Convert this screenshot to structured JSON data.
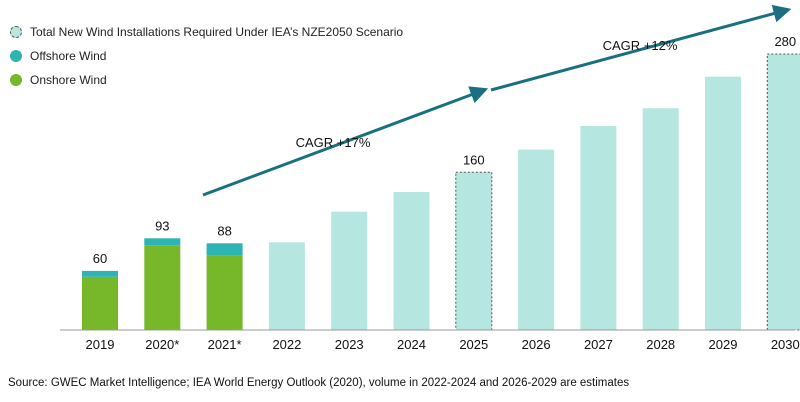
{
  "colors": {
    "onshore": "#76b82a",
    "offshore": "#2db4b4",
    "required": "#b5e6e0",
    "arrow": "#1a6f80",
    "axis": "#999999"
  },
  "legend": [
    {
      "label": "Total New Wind Installations Required Under IEA’s NZE2050 Scenario",
      "key": "required",
      "dashed": true
    },
    {
      "label": "Offshore Wind",
      "key": "offshore",
      "dashed": false
    },
    {
      "label": "Onshore Wind",
      "key": "onshore",
      "dashed": false
    }
  ],
  "source": "Source: GWEC Market Intelligence; IEA World Energy Outlook (2020), volume in 2022-2024 and 2026-2029 are estimates",
  "chart_data": {
    "type": "bar",
    "title": "",
    "xlabel": "",
    "ylabel": "",
    "ylim": [
      0,
      300
    ],
    "categories": [
      "2019",
      "2020*",
      "2021*",
      "2022",
      "2023",
      "2024",
      "2025",
      "2026",
      "2027",
      "2028",
      "2029",
      "2030"
    ],
    "series": [
      {
        "name": "Onshore Wind",
        "key": "onshore",
        "values": [
          54,
          86,
          76,
          null,
          null,
          null,
          null,
          null,
          null,
          null,
          null,
          null
        ]
      },
      {
        "name": "Offshore Wind",
        "key": "offshore",
        "values": [
          6,
          7,
          12,
          null,
          null,
          null,
          null,
          null,
          null,
          null,
          null,
          null
        ]
      },
      {
        "name": "Total New Wind Installations Required Under IEA’s NZE2050 Scenario",
        "key": "required",
        "values": [
          null,
          null,
          null,
          89,
          120,
          140,
          160,
          183,
          207,
          225,
          257,
          280
        ]
      }
    ],
    "highlighted": [
      "2025",
      "2030"
    ],
    "data_labels": [
      {
        "category": "2019",
        "text": "60"
      },
      {
        "category": "2020*",
        "text": "93"
      },
      {
        "category": "2021*",
        "text": "88"
      },
      {
        "category": "2025",
        "text": "160"
      },
      {
        "category": "2030",
        "text": "280"
      }
    ],
    "annotations": [
      {
        "text": "CAGR +17%",
        "from": "2021*",
        "to": "2025"
      },
      {
        "text": "CAGR +12%",
        "from": "2025",
        "to": "2030"
      }
    ]
  }
}
